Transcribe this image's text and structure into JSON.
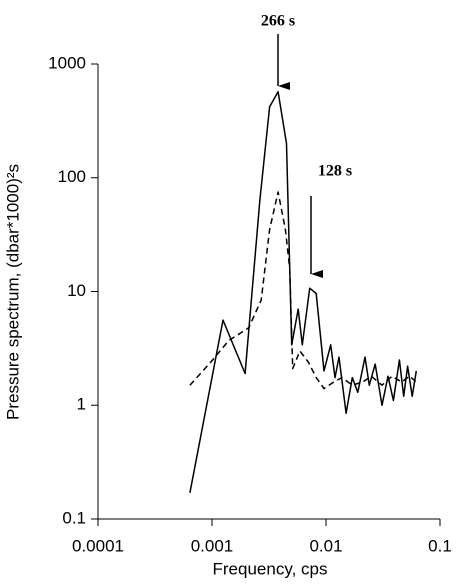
{
  "chart_data": {
    "type": "line",
    "xlabel": "Frequency, cps",
    "ylabel": "Pressure spectrum, (dbar*1000)²s",
    "annotations": [
      "266 s",
      "128 s"
    ],
    "xscale": "log",
    "yscale": "log",
    "xlim": [
      0.0001,
      0.1
    ],
    "ylim": [
      0.1,
      1000
    ],
    "xticks": [
      0.0001,
      0.001,
      0.01,
      0.1
    ],
    "yticks": [
      0.1,
      1,
      10,
      100,
      1000
    ],
    "series": [
      {
        "color": "#000000",
        "dashed": false,
        "x": [
          0.00064,
          0.00125,
          0.00195,
          0.00263,
          0.0032,
          0.0038,
          0.0045,
          0.005,
          0.0057,
          0.0062,
          0.0072,
          0.0082,
          0.0096,
          0.011,
          0.012,
          0.013,
          0.015,
          0.017,
          0.019,
          0.022,
          0.024,
          0.027,
          0.031,
          0.035,
          0.039,
          0.044,
          0.048,
          0.052,
          0.057,
          0.062
        ],
        "values": [
          0.17,
          5.6,
          1.9,
          64,
          420,
          570,
          200,
          3.4,
          7,
          3.4,
          10.7,
          9.6,
          2.0,
          3.4,
          1.75,
          2.65,
          0.85,
          1.75,
          1.3,
          2.65,
          1.5,
          2.3,
          1.0,
          1.8,
          1.1,
          2.5,
          1.2,
          2.2,
          1.2,
          2.0
        ]
      },
      {
        "color": "#000000",
        "dashed": true,
        "x": [
          0.00064,
          0.00096,
          0.0014,
          0.0021,
          0.0027,
          0.0032,
          0.0038,
          0.0044,
          0.0048,
          0.0051,
          0.0059,
          0.007,
          0.0082,
          0.0096,
          0.0117,
          0.0138,
          0.017,
          0.021,
          0.025,
          0.031,
          0.038,
          0.046,
          0.054,
          0.062
        ],
        "values": [
          1.5,
          2.35,
          3.7,
          4.8,
          8.4,
          35,
          75,
          35,
          16,
          2.1,
          3.0,
          2.4,
          1.75,
          1.4,
          1.6,
          1.75,
          1.5,
          1.6,
          1.8,
          1.5,
          1.8,
          1.6,
          1.8,
          1.6
        ]
      }
    ]
  }
}
